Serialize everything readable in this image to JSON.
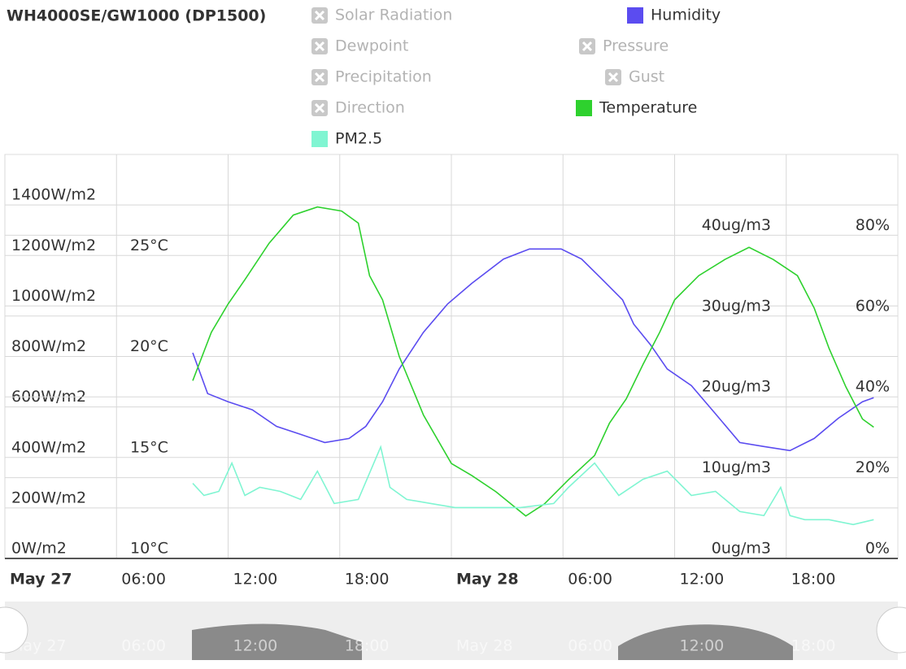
{
  "chart_data": {
    "type": "line",
    "title": "WH4000SE/GW1000 (DP1500)",
    "xlim": [
      0,
      48
    ],
    "xticks": [
      {
        "value": 0,
        "label": "May 27"
      },
      {
        "value": 6,
        "label": "06:00"
      },
      {
        "value": 12,
        "label": "12:00"
      },
      {
        "value": 18,
        "label": "18:00"
      },
      {
        "value": 24,
        "label": "May 28"
      },
      {
        "value": 30,
        "label": "06:00"
      },
      {
        "value": 36,
        "label": "12:00"
      },
      {
        "value": 42,
        "label": "18:00"
      }
    ],
    "ylim": [
      0,
      1600
    ],
    "yticks": [
      {
        "value": 0,
        "label": "0W/m2"
      },
      {
        "value": 200,
        "label": "200W/m2"
      },
      {
        "value": 400,
        "label": "400W/m2"
      },
      {
        "value": 600,
        "label": "600W/m2"
      },
      {
        "value": 800,
        "label": "800W/m2"
      },
      {
        "value": 1000,
        "label": "1000W/m2"
      },
      {
        "value": 1200,
        "label": "1200W/m2"
      },
      {
        "value": 1400,
        "label": "1400W/m2"
      }
    ],
    "y2lim": [
      10,
      30
    ],
    "y2ticks": [
      {
        "value": 10,
        "label": "10°C"
      },
      {
        "value": 15,
        "label": "15°C"
      },
      {
        "value": 20,
        "label": "20°C"
      },
      {
        "value": 25,
        "label": "25°C"
      }
    ],
    "y3lim": [
      0,
      50
    ],
    "y3ticks": [
      {
        "value": 0,
        "label": "0ug/m3"
      },
      {
        "value": 10,
        "label": "10ug/m3"
      },
      {
        "value": 20,
        "label": "20ug/m3"
      },
      {
        "value": 30,
        "label": "30ug/m3"
      },
      {
        "value": 40,
        "label": "40ug/m3"
      }
    ],
    "y4lim": [
      0,
      100
    ],
    "y4ticks": [
      {
        "value": 0,
        "label": "0%"
      },
      {
        "value": 20,
        "label": "20%"
      },
      {
        "value": 40,
        "label": "40%"
      },
      {
        "value": 60,
        "label": "60%"
      },
      {
        "value": 80,
        "label": "80%"
      }
    ],
    "grid": true,
    "series": [
      {
        "name": "Solar Radiation",
        "visible": false
      },
      {
        "name": "Humidity",
        "visible": true,
        "color": "#5b4cf0",
        "axis": "y4",
        "x": [
          10.1,
          10.9,
          12.0,
          13.3,
          14.6,
          15.9,
          17.2,
          18.5,
          19.4,
          20.3,
          21.2,
          22.5,
          23.8,
          25.1,
          26.8,
          28.2,
          29.9,
          31.0,
          32.1,
          33.2,
          33.8,
          34.7,
          35.6,
          36.9,
          38.2,
          39.5,
          40.8,
          42.2,
          43.5,
          44.8,
          46.1,
          46.7
        ],
        "values": [
          50.9,
          40.8,
          38.8,
          36.8,
          32.7,
          30.7,
          28.7,
          29.7,
          32.7,
          38.8,
          46.9,
          56.0,
          63.0,
          68.1,
          74.1,
          76.6,
          76.6,
          74.1,
          69.1,
          64.0,
          58.0,
          52.9,
          46.9,
          42.8,
          35.8,
          28.7,
          27.7,
          26.7,
          29.7,
          34.7,
          38.8,
          39.8
        ]
      },
      {
        "name": "Dewpoint",
        "visible": false
      },
      {
        "name": "Pressure",
        "visible": false
      },
      {
        "name": "Precipitation",
        "visible": false
      },
      {
        "name": "Gust",
        "visible": false
      },
      {
        "name": "Direction",
        "visible": false
      },
      {
        "name": "Temperature",
        "visible": true,
        "color": "#2ed12e",
        "axis": "y2",
        "x": [
          10.1,
          11.1,
          12.0,
          12.9,
          14.2,
          15.5,
          16.8,
          18.1,
          19.0,
          19.6,
          20.3,
          21.2,
          22.5,
          24.0,
          25.1,
          26.4,
          28.0,
          29.0,
          30.3,
          31.7,
          32.5,
          33.4,
          34.3,
          35.2,
          36.0,
          37.3,
          38.7,
          40.0,
          41.3,
          42.6,
          43.5,
          44.3,
          45.2,
          46.1,
          46.7
        ],
        "values": [
          18.8,
          21.2,
          22.6,
          23.8,
          25.6,
          27.0,
          27.4,
          27.2,
          26.6,
          24.0,
          22.8,
          20.0,
          17.1,
          14.7,
          14.1,
          13.3,
          12.1,
          12.7,
          13.9,
          15.1,
          16.7,
          17.9,
          19.6,
          21.2,
          22.8,
          24.0,
          24.8,
          25.4,
          24.8,
          24.0,
          22.4,
          20.4,
          18.5,
          16.9,
          16.5
        ]
      },
      {
        "name": "PM2.5",
        "visible": true,
        "color": "#80f5d2",
        "axis": "y3",
        "x": [
          10.1,
          10.7,
          11.5,
          12.2,
          12.9,
          13.7,
          14.8,
          15.9,
          16.8,
          17.7,
          19.0,
          20.2,
          20.7,
          21.6,
          22.9,
          24.2,
          26.0,
          27.7,
          29.5,
          30.3,
          31.7,
          33.0,
          34.3,
          35.6,
          36.9,
          38.2,
          39.5,
          40.8,
          41.7,
          42.2,
          43.0,
          44.3,
          45.6,
          46.7
        ],
        "values": [
          9.3,
          7.8,
          8.3,
          11.8,
          7.8,
          8.8,
          8.3,
          7.3,
          10.8,
          6.8,
          7.3,
          13.8,
          8.8,
          7.3,
          6.8,
          6.3,
          6.3,
          6.3,
          6.8,
          8.8,
          11.8,
          7.8,
          9.8,
          10.8,
          7.8,
          8.3,
          5.8,
          5.3,
          8.8,
          5.3,
          4.8,
          4.8,
          4.2,
          4.8
        ]
      }
    ]
  }
}
